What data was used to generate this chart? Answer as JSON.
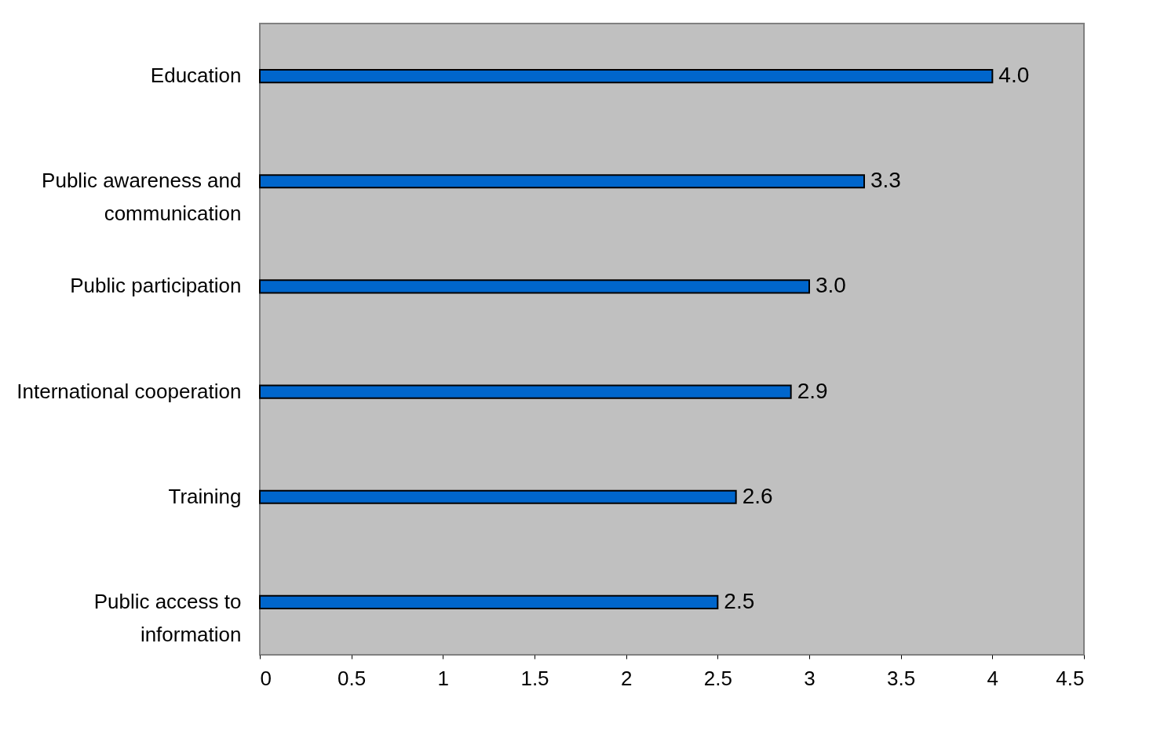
{
  "chart_data": {
    "type": "bar",
    "orientation": "horizontal",
    "categories": [
      "Education",
      "Public awareness and communication",
      "Public participation",
      "International cooperation",
      "Training",
      "Public access to information"
    ],
    "values": [
      4.0,
      3.3,
      3.0,
      2.9,
      2.6,
      2.5
    ],
    "value_labels": [
      "4.0",
      "3.3",
      "3.0",
      "2.9",
      "2.6",
      "2.5"
    ],
    "color": "#0066cc",
    "xlim": [
      0,
      4.5
    ],
    "xticks": [
      0,
      0.5,
      1,
      1.5,
      2,
      2.5,
      3,
      3.5,
      4,
      4.5
    ],
    "grid": false
  }
}
